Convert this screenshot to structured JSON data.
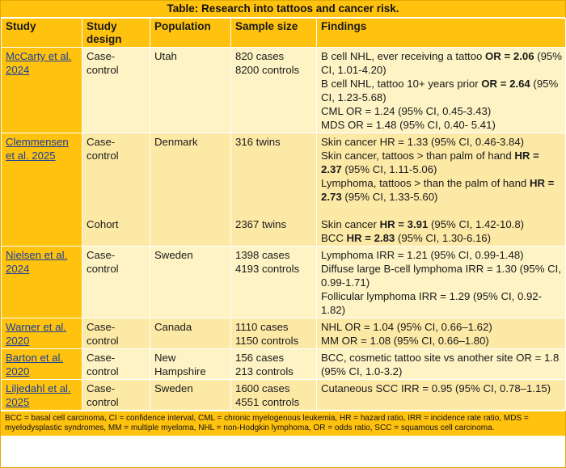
{
  "title": "Table: Research into tattoos and cancer risk.",
  "headers": {
    "study": "Study",
    "design": "Study design",
    "population": "Population",
    "sample": "Sample size",
    "findings": "Findings"
  },
  "rows": [
    {
      "study": "McCarty et al. 2024",
      "design": "Case-control",
      "population": "Utah",
      "sample": [
        "820 cases",
        "8200 controls"
      ],
      "findings": [
        {
          "pre": "B cell NHL, ever receiving a tattoo ",
          "bold": "OR = 2.06",
          "post": " (95% CI, 1.01-4.20)"
        },
        {
          "pre": "B cell NHL, tattoo 10+ years prior ",
          "bold": "OR = 2.64",
          "post": " (95% CI, 1.23-5.68)"
        },
        {
          "pre": "CML OR = 1.24 (95% CI, 0.45-3.43)",
          "bold": "",
          "post": ""
        },
        {
          "pre": "MDS OR = 1.48 (95% CI, 0.40- 5.41)",
          "bold": "",
          "post": ""
        }
      ]
    },
    {
      "study": "Clemmensen et al. 2025",
      "design": "Case-control",
      "design2": "Cohort",
      "population": "Denmark",
      "sample": [
        "316 twins"
      ],
      "sample2": "2367 twins",
      "findings": [
        {
          "pre": "Skin cancer HR = 1.33 (95% CI, 0.46-3.84)",
          "bold": "",
          "post": ""
        },
        {
          "pre": "Skin cancer, tattoos > than palm of hand ",
          "bold": "HR = 2.37",
          "post": " (95% CI, 1.11-5.06)"
        },
        {
          "pre": "Lymphoma, tattoos > than the palm of hand ",
          "bold": "HR = 2.73",
          "post": " (95% CI, 1.33-5.60)"
        }
      ],
      "findings2": [
        {
          "pre": "Skin cancer ",
          "bold": "HR = 3.91",
          "post": " (95% CI, 1.42-10.8)"
        },
        {
          "pre": "BCC ",
          "bold": "HR = 2.83",
          "post": " (95% CI, 1.30-6.16)"
        }
      ]
    },
    {
      "study": "Nielsen et al. 2024",
      "design": "Case-control",
      "population": "Sweden",
      "sample": [
        "1398 cases",
        "4193 controls"
      ],
      "findings": [
        {
          "pre": "Lymphoma IRR = 1.21 (95% CI, 0.99-1.48)",
          "bold": "",
          "post": ""
        },
        {
          "pre": "Diffuse large B-cell lymphoma IRR = 1.30 (95% CI, 0.99-1.71)",
          "bold": "",
          "post": ""
        },
        {
          "pre": "Follicular lymphoma IRR = 1.29 (95% CI, 0.92-1.82)",
          "bold": "",
          "post": ""
        }
      ]
    },
    {
      "study": "Warner et al. 2020",
      "design": "Case-control",
      "population": "Canada",
      "sample": [
        "1110 cases",
        "1150 controls"
      ],
      "findings": [
        {
          "pre": "NHL OR = 1.04 (95% CI, 0.66–1.62)",
          "bold": "",
          "post": ""
        },
        {
          "pre": "MM OR = 1.08 (95% CI, 0.66–1.80)",
          "bold": "",
          "post": ""
        }
      ]
    },
    {
      "study": "Barton et al. 2020",
      "design": "Case-control",
      "population": "New Hampshire",
      "sample": [
        "156 cases",
        "213 controls"
      ],
      "findings": [
        {
          "pre": "BCC, cosmetic tattoo site vs another site OR = 1.8 (95% CI, 1.0-3.2)",
          "bold": "",
          "post": ""
        }
      ]
    },
    {
      "study": "Liljedahl et al. 2025",
      "design": "Case-control",
      "population": "Sweden",
      "sample": [
        "1600 cases",
        "4551 controls"
      ],
      "findings": [
        {
          "pre": "Cutaneous SCC IRR = 0.95 (95% CI, 0.78–1.15)",
          "bold": "",
          "post": ""
        }
      ]
    }
  ],
  "footnote": "BCC = basal cell carcinoma, CI = confidence interval, CML = chronic myelogenous leukemia, HR = hazard ratio, IRR = incidence rate ratio, MDS = myelodysplastic syndromes, MM = multiple myeloma, NHL = non-Hodgkin lymphoma, OR = odds ratio, SCC = squamous cell carcinoma.",
  "colors": {
    "header": "#ffc20e",
    "row_light": "#fdf3c4",
    "row_dark": "#fde9a6",
    "link": "#1a3f9e"
  }
}
